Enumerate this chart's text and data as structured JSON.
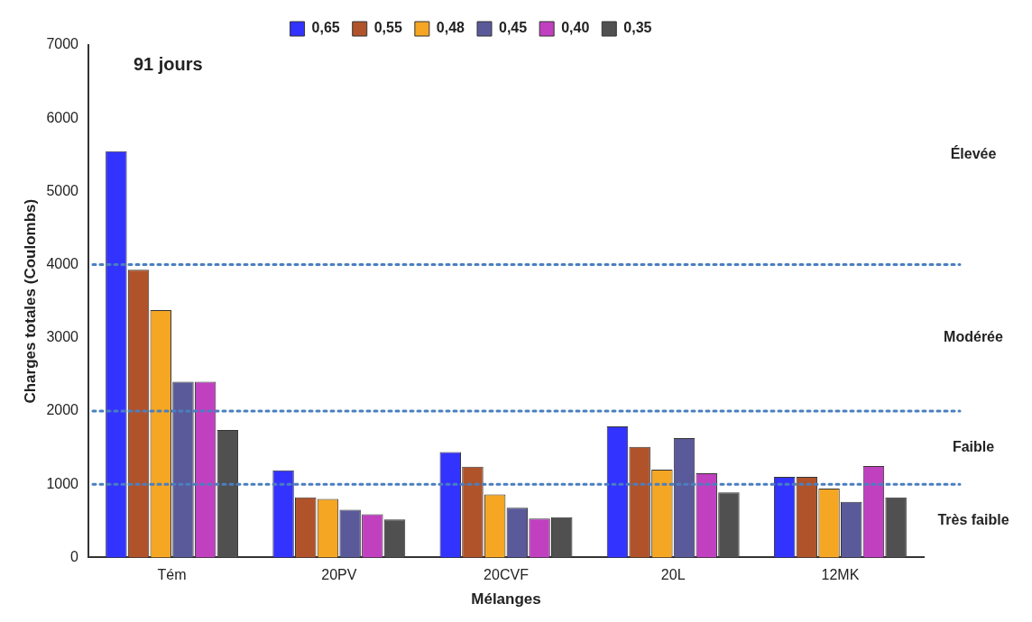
{
  "chart_data": {
    "type": "bar",
    "title": "91 jours",
    "xlabel": "Mélanges",
    "ylabel": "Charges totales (Coulombs)",
    "categories": [
      "Tém",
      "20PV",
      "20CVF",
      "20L",
      "12MK"
    ],
    "series": [
      {
        "name": "0,65",
        "color": "#3333ff",
        "values": [
          5550,
          1190,
          1440,
          1790,
          1100
        ]
      },
      {
        "name": "0,55",
        "color": "#b0532a",
        "values": [
          3930,
          820,
          1240,
          1510,
          1100
        ]
      },
      {
        "name": "0,48",
        "color": "#f5a623",
        "values": [
          3380,
          800,
          860,
          1200,
          940
        ]
      },
      {
        "name": "0,45",
        "color": "#5a5a9a",
        "values": [
          2400,
          650,
          680,
          1630,
          760
        ]
      },
      {
        "name": "0,40",
        "color": "#c040c0",
        "values": [
          2400,
          590,
          530,
          1150,
          1250
        ]
      },
      {
        "name": "0,35",
        "color": "#505050",
        "values": [
          1740,
          520,
          550,
          890,
          820
        ]
      }
    ],
    "ylim": [
      0,
      7000
    ],
    "yticks": [
      0,
      1000,
      2000,
      3000,
      4000,
      5000,
      6000,
      7000
    ],
    "grid": false,
    "legend": "top",
    "ref_lines": [
      {
        "axis": "y",
        "value": 4000,
        "color": "#4a7fc0",
        "line_style": "dotted"
      },
      {
        "axis": "y",
        "value": 2000,
        "color": "#4a7fc0",
        "line_style": "dotted"
      },
      {
        "axis": "y",
        "value": 1000,
        "color": "#4a7fc0",
        "line_style": "dotted"
      }
    ],
    "annotations": [
      "Élevée",
      "Modérée",
      "Faible",
      "Très faible"
    ]
  }
}
